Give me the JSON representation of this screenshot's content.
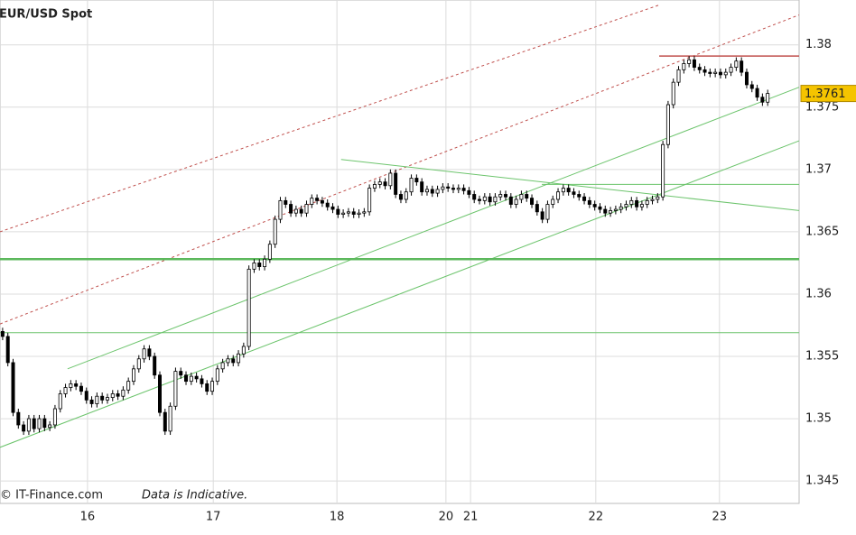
{
  "chart_data": {
    "type": "candlestick",
    "title": "EUR/USD Spot",
    "annotations": [
      "© IT-Finance.com",
      "Data is Indicative."
    ],
    "ylim": [
      1.3432,
      1.3836
    ],
    "yticks": [
      1.345,
      1.35,
      1.355,
      1.36,
      1.365,
      1.37,
      1.375,
      1.38
    ],
    "xlim": [
      -0.5,
      152
    ],
    "xticks": [
      {
        "value": 16.2,
        "label": "16"
      },
      {
        "value": 40.2,
        "label": "17"
      },
      {
        "value": 63.8,
        "label": "18"
      },
      {
        "value": 84.6,
        "label": "20"
      },
      {
        "value": 89.3,
        "label": "21"
      },
      {
        "value": 113.2,
        "label": "22"
      },
      {
        "value": 136.8,
        "label": "23"
      }
    ],
    "grid": true,
    "up_color": "#ffffff",
    "down_color": "#000000",
    "wick_color": "#000000",
    "last_price": 1.3761,
    "last_price_color": "#f5c400",
    "ohlc": {
      "open": [
        1.357,
        1.3566,
        1.3545,
        1.3505,
        1.3495,
        1.349,
        1.35,
        1.3492,
        1.35,
        1.3493,
        1.3495,
        1.3508,
        1.352,
        1.3525,
        1.3528,
        1.3526,
        1.3522,
        1.3515,
        1.3512,
        1.3518,
        1.3515,
        1.3517,
        1.352,
        1.3518,
        1.3523,
        1.353,
        1.354,
        1.3548,
        1.3556,
        1.355,
        1.3535,
        1.3505,
        1.349,
        1.351,
        1.3538,
        1.3535,
        1.353,
        1.3534,
        1.3532,
        1.3528,
        1.3522,
        1.353,
        1.354,
        1.3545,
        1.3548,
        1.3545,
        1.3552,
        1.3558,
        1.362,
        1.3625,
        1.3622,
        1.3628,
        1.364,
        1.366,
        1.3675,
        1.3672,
        1.3665,
        1.3668,
        1.3665,
        1.3672,
        1.3677,
        1.3675,
        1.3673,
        1.367,
        1.3668,
        1.3664,
        1.3665,
        1.3666,
        1.3664,
        1.3665,
        1.3666,
        1.3685,
        1.3688,
        1.369,
        1.3687,
        1.3697,
        1.368,
        1.3676,
        1.3682,
        1.3693,
        1.369,
        1.3682,
        1.3684,
        1.3681,
        1.3684,
        1.3686,
        1.3685,
        1.3684,
        1.3685,
        1.3683,
        1.368,
        1.3676,
        1.3675,
        1.3678,
        1.3674,
        1.3678,
        1.368,
        1.3678,
        1.3672,
        1.3676,
        1.368,
        1.3677,
        1.3672,
        1.3666,
        1.366,
        1.3672,
        1.3676,
        1.3682,
        1.3685,
        1.3682,
        1.368,
        1.3678,
        1.3675,
        1.3672,
        1.367,
        1.3668,
        1.3665,
        1.3667,
        1.3668,
        1.367,
        1.3672,
        1.3675,
        1.367,
        1.3672,
        1.3675,
        1.3676,
        1.3678,
        1.372,
        1.3752,
        1.377,
        1.378,
        1.3785,
        1.3788,
        1.3782,
        1.378,
        1.3778,
        1.3777,
        1.3778,
        1.3776,
        1.3778,
        1.3782,
        1.3787,
        1.3778,
        1.3768,
        1.3765,
        1.3758,
        1.3754
      ],
      "high": [
        1.3573,
        1.3569,
        1.3548,
        1.3508,
        1.3498,
        1.3503,
        1.3503,
        1.3503,
        1.3503,
        1.3498,
        1.3511,
        1.3523,
        1.3528,
        1.3531,
        1.3531,
        1.3529,
        1.3525,
        1.3518,
        1.3521,
        1.3521,
        1.352,
        1.3523,
        1.3523,
        1.3526,
        1.3533,
        1.3543,
        1.3551,
        1.3559,
        1.3559,
        1.3553,
        1.3538,
        1.3508,
        1.3513,
        1.3541,
        1.3541,
        1.3538,
        1.3537,
        1.3537,
        1.3535,
        1.3531,
        1.3533,
        1.3543,
        1.3548,
        1.3551,
        1.3551,
        1.3555,
        1.3561,
        1.3623,
        1.3628,
        1.3628,
        1.3631,
        1.3643,
        1.3663,
        1.3678,
        1.3678,
        1.3675,
        1.3671,
        1.3671,
        1.3675,
        1.368,
        1.368,
        1.3678,
        1.3676,
        1.3673,
        1.3671,
        1.3668,
        1.3669,
        1.3669,
        1.3668,
        1.3669,
        1.3688,
        1.3691,
        1.3693,
        1.3693,
        1.37,
        1.37,
        1.3683,
        1.3685,
        1.3696,
        1.3696,
        1.3693,
        1.3687,
        1.3687,
        1.3687,
        1.3689,
        1.3689,
        1.3688,
        1.3688,
        1.3688,
        1.3686,
        1.3683,
        1.3679,
        1.3681,
        1.3681,
        1.3681,
        1.3683,
        1.3683,
        1.3681,
        1.3679,
        1.3683,
        1.3683,
        1.368,
        1.3675,
        1.3669,
        1.3675,
        1.3679,
        1.3685,
        1.3688,
        1.3688,
        1.3685,
        1.3683,
        1.3681,
        1.3678,
        1.3675,
        1.3673,
        1.3671,
        1.367,
        1.3671,
        1.3673,
        1.3675,
        1.3678,
        1.3678,
        1.3675,
        1.3678,
        1.3679,
        1.3681,
        1.3723,
        1.3755,
        1.3773,
        1.3783,
        1.3788,
        1.3791,
        1.3791,
        1.3785,
        1.3783,
        1.3781,
        1.3781,
        1.3781,
        1.3781,
        1.3785,
        1.379,
        1.379,
        1.3781,
        1.3771,
        1.3768,
        1.3761,
        1.3764
      ],
      "low": [
        1.3563,
        1.3542,
        1.3502,
        1.3492,
        1.3487,
        1.3487,
        1.3489,
        1.3489,
        1.349,
        1.349,
        1.3492,
        1.3505,
        1.3517,
        1.3522,
        1.3523,
        1.3519,
        1.3512,
        1.3509,
        1.3509,
        1.3512,
        1.3512,
        1.3514,
        1.3515,
        1.3515,
        1.352,
        1.3527,
        1.3537,
        1.3545,
        1.3547,
        1.3532,
        1.3502,
        1.3487,
        1.3487,
        1.3507,
        1.3532,
        1.3527,
        1.3527,
        1.3529,
        1.3525,
        1.3519,
        1.3519,
        1.3527,
        1.3537,
        1.3542,
        1.3542,
        1.3542,
        1.3549,
        1.3555,
        1.3617,
        1.3619,
        1.3619,
        1.3625,
        1.3637,
        1.3657,
        1.3669,
        1.3662,
        1.3662,
        1.3662,
        1.3662,
        1.3669,
        1.3672,
        1.367,
        1.3667,
        1.3665,
        1.3661,
        1.3661,
        1.3662,
        1.3661,
        1.3661,
        1.3662,
        1.3663,
        1.3682,
        1.3685,
        1.3684,
        1.3684,
        1.3677,
        1.3673,
        1.3673,
        1.3679,
        1.3687,
        1.3679,
        1.3679,
        1.3678,
        1.3678,
        1.3681,
        1.3682,
        1.3681,
        1.3681,
        1.368,
        1.3677,
        1.3673,
        1.3672,
        1.3672,
        1.3671,
        1.3671,
        1.3675,
        1.3675,
        1.3669,
        1.3669,
        1.3673,
        1.3674,
        1.3669,
        1.3663,
        1.3657,
        1.3657,
        1.3669,
        1.3673,
        1.3679,
        1.3679,
        1.3677,
        1.3675,
        1.3672,
        1.3669,
        1.3667,
        1.3665,
        1.3662,
        1.3662,
        1.3664,
        1.3665,
        1.3667,
        1.3669,
        1.3667,
        1.3667,
        1.3669,
        1.3672,
        1.3673,
        1.3675,
        1.3717,
        1.3749,
        1.3767,
        1.3777,
        1.3782,
        1.3779,
        1.3777,
        1.3775,
        1.3774,
        1.3774,
        1.3773,
        1.3773,
        1.3775,
        1.3779,
        1.3775,
        1.3765,
        1.3762,
        1.3755,
        1.3751,
        1.3751
      ],
      "close": [
        1.3566,
        1.3545,
        1.3505,
        1.3495,
        1.349,
        1.35,
        1.3492,
        1.35,
        1.3493,
        1.3495,
        1.3508,
        1.352,
        1.3525,
        1.3528,
        1.3526,
        1.3522,
        1.3515,
        1.3512,
        1.3518,
        1.3515,
        1.3517,
        1.352,
        1.3518,
        1.3523,
        1.353,
        1.354,
        1.3548,
        1.3556,
        1.355,
        1.3535,
        1.3505,
        1.349,
        1.351,
        1.3538,
        1.3535,
        1.353,
        1.3534,
        1.3532,
        1.3528,
        1.3522,
        1.353,
        1.354,
        1.3545,
        1.3548,
        1.3545,
        1.3552,
        1.3558,
        1.362,
        1.3625,
        1.3622,
        1.3628,
        1.364,
        1.366,
        1.3675,
        1.3672,
        1.3665,
        1.3668,
        1.3665,
        1.3672,
        1.3677,
        1.3675,
        1.3673,
        1.367,
        1.3668,
        1.3664,
        1.3665,
        1.3666,
        1.3664,
        1.3665,
        1.3666,
        1.3685,
        1.3688,
        1.369,
        1.3687,
        1.3697,
        1.368,
        1.3676,
        1.3682,
        1.3693,
        1.369,
        1.3682,
        1.3684,
        1.3681,
        1.3684,
        1.3686,
        1.3685,
        1.3684,
        1.3685,
        1.3683,
        1.368,
        1.3676,
        1.3675,
        1.3678,
        1.3674,
        1.3678,
        1.368,
        1.3678,
        1.3672,
        1.3676,
        1.368,
        1.3677,
        1.3672,
        1.3666,
        1.366,
        1.3672,
        1.3676,
        1.3682,
        1.3685,
        1.3682,
        1.368,
        1.3678,
        1.3675,
        1.3672,
        1.367,
        1.3668,
        1.3665,
        1.3667,
        1.3668,
        1.367,
        1.3672,
        1.3675,
        1.367,
        1.3672,
        1.3675,
        1.3676,
        1.3678,
        1.372,
        1.3752,
        1.377,
        1.378,
        1.3785,
        1.3788,
        1.3782,
        1.378,
        1.3778,
        1.3777,
        1.3778,
        1.3776,
        1.3778,
        1.3782,
        1.3787,
        1.3778,
        1.3768,
        1.3765,
        1.3758,
        1.3754,
        1.3761
      ]
    },
    "trendlines": [
      {
        "x": [
          -0.5,
          125.3
        ],
        "y": [
          1.365,
          1.3832
        ],
        "color": "#c0504d",
        "dashed": true,
        "width": 1
      },
      {
        "x": [
          -0.5,
          152
        ],
        "y": [
          1.3576,
          1.3824
        ],
        "color": "#c0504d",
        "dashed": true,
        "width": 1
      },
      {
        "x": [
          12.4,
          152
        ],
        "y": [
          1.354,
          1.3766
        ],
        "color": "#6cc46c",
        "dashed": false,
        "width": 1
      },
      {
        "x": [
          -0.5,
          152
        ],
        "y": [
          1.3477,
          1.3723
        ],
        "color": "#6cc46c",
        "dashed": false,
        "width": 1
      },
      {
        "x": [
          64.6,
          152
        ],
        "y": [
          1.3708,
          1.3667
        ],
        "color": "#6cc46c",
        "dashed": false,
        "width": 1
      },
      {
        "x": [
          -0.5,
          152
        ],
        "y": [
          1.3628,
          1.3628
        ],
        "color": "#5cb85c",
        "dashed": false,
        "width": 2.5
      },
      {
        "x": [
          -0.5,
          152
        ],
        "y": [
          1.3569,
          1.3569
        ],
        "color": "#6cc46c",
        "dashed": false,
        "width": 1
      },
      {
        "x": [
          102.9,
          152
        ],
        "y": [
          1.3688,
          1.3688
        ],
        "color": "#6cc46c",
        "dashed": false,
        "width": 1
      },
      {
        "x": [
          125.3,
          152
        ],
        "y": [
          1.3791,
          1.3791
        ],
        "color": "#c0504d",
        "dashed": false,
        "width": 1.5
      }
    ]
  }
}
